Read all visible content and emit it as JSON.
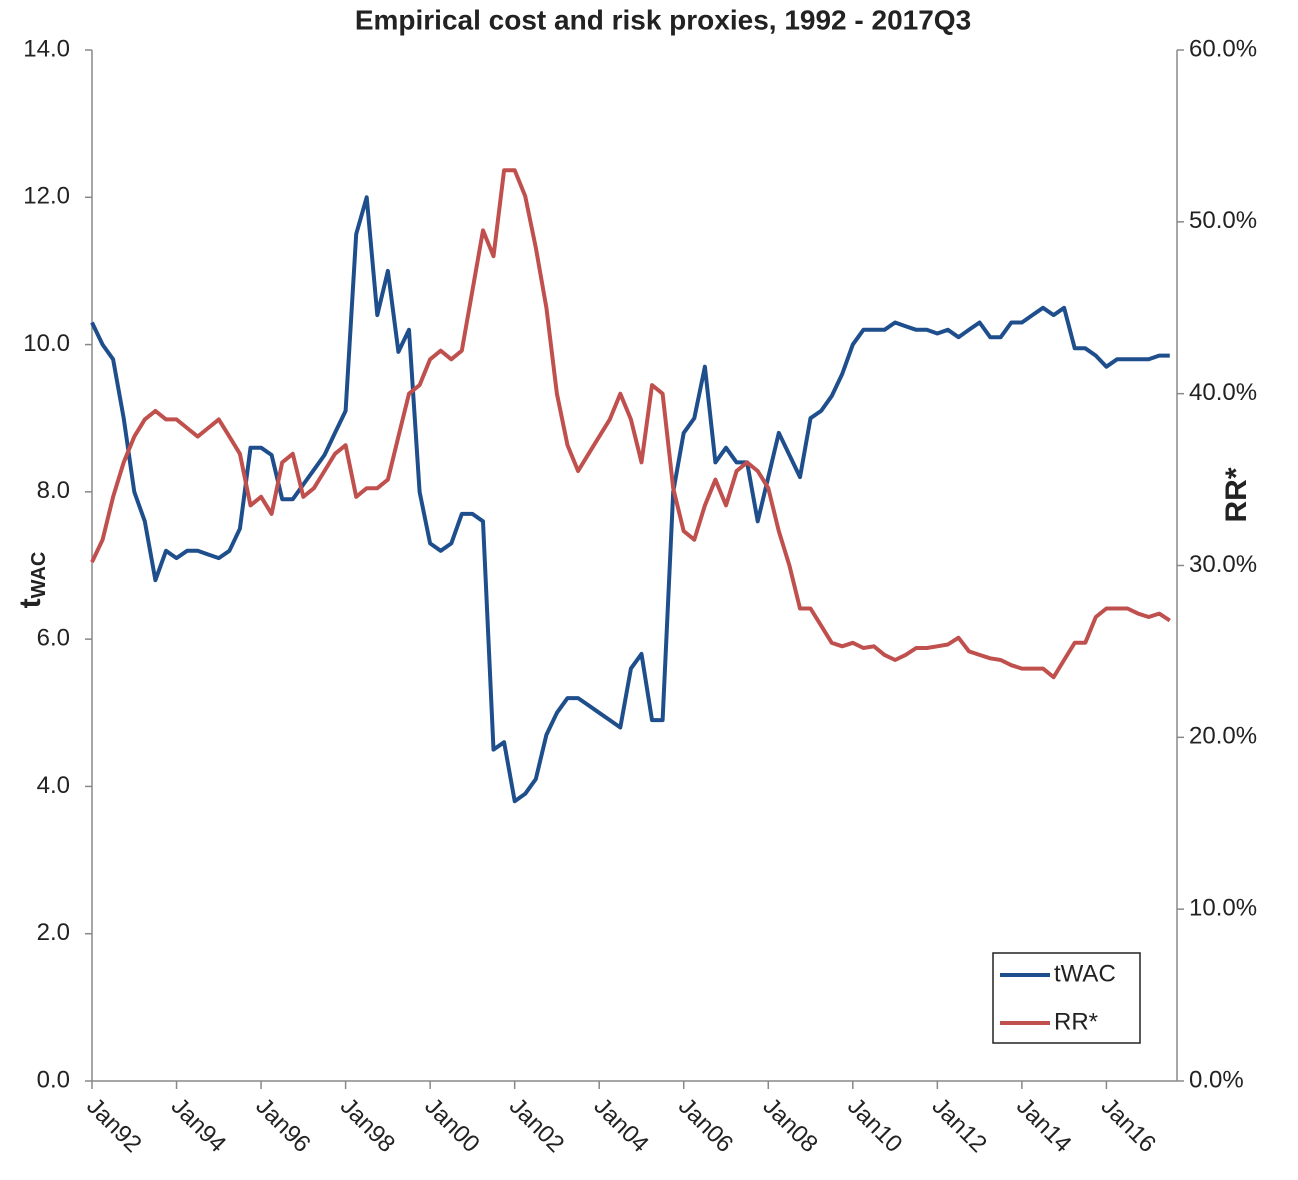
{
  "chart_data": {
    "type": "line",
    "title": "Empirical cost and risk proxies, 1992 - 2017Q3",
    "ylabel_main": "t",
    "ylabel_sub": "WAC",
    "y2label": "RR*",
    "x": [
      1992,
      1992.25,
      1992.5,
      1992.75,
      1993,
      1993.25,
      1993.5,
      1993.75,
      1994,
      1994.25,
      1994.5,
      1994.75,
      1995,
      1995.25,
      1995.5,
      1995.75,
      1996,
      1996.25,
      1996.5,
      1996.75,
      1997,
      1997.25,
      1997.5,
      1997.75,
      1998,
      1998.25,
      1998.5,
      1998.75,
      1999,
      1999.25,
      1999.5,
      1999.75,
      2000,
      2000.25,
      2000.5,
      2000.75,
      2001,
      2001.25,
      2001.5,
      2001.75,
      2002,
      2002.25,
      2002.5,
      2002.75,
      2003,
      2003.25,
      2003.5,
      2003.75,
      2004,
      2004.25,
      2004.5,
      2004.75,
      2005,
      2005.25,
      2005.5,
      2005.75,
      2006,
      2006.25,
      2006.5,
      2006.75,
      2007,
      2007.25,
      2007.5,
      2007.75,
      2008,
      2008.25,
      2008.5,
      2008.75,
      2009,
      2009.25,
      2009.5,
      2009.75,
      2010,
      2010.25,
      2010.5,
      2010.75,
      2011,
      2011.25,
      2011.5,
      2011.75,
      2012,
      2012.25,
      2012.5,
      2012.75,
      2013,
      2013.25,
      2013.5,
      2013.75,
      2014,
      2014.25,
      2014.5,
      2014.75,
      2015,
      2015.25,
      2015.5,
      2015.75,
      2016,
      2016.25,
      2016.5,
      2016.75,
      2017,
      2017.25,
      2017.5
    ],
    "xlim": [
      1992,
      2017.67
    ],
    "xticks": [
      {
        "value": 1992,
        "label": "Jan92"
      },
      {
        "value": 1994,
        "label": "Jan94"
      },
      {
        "value": 1996,
        "label": "Jan96"
      },
      {
        "value": 1998,
        "label": "Jan98"
      },
      {
        "value": 2000,
        "label": "Jan00"
      },
      {
        "value": 2002,
        "label": "Jan02"
      },
      {
        "value": 2004,
        "label": "Jan04"
      },
      {
        "value": 2006,
        "label": "Jan06"
      },
      {
        "value": 2008,
        "label": "Jan08"
      },
      {
        "value": 2010,
        "label": "Jan10"
      },
      {
        "value": 2012,
        "label": "Jan12"
      },
      {
        "value": 2014,
        "label": "Jan14"
      },
      {
        "value": 2016,
        "label": "Jan16"
      }
    ],
    "ylim": [
      0,
      14
    ],
    "yticks": [
      {
        "value": 0,
        "label": "0.0"
      },
      {
        "value": 2,
        "label": "2.0"
      },
      {
        "value": 4,
        "label": "4.0"
      },
      {
        "value": 6,
        "label": "6.0"
      },
      {
        "value": 8,
        "label": "8.0"
      },
      {
        "value": 10,
        "label": "10.0"
      },
      {
        "value": 12,
        "label": "12.0"
      },
      {
        "value": 14,
        "label": "14.0"
      }
    ],
    "y2lim": [
      0,
      60
    ],
    "y2ticks": [
      {
        "value": 0,
        "label": "0.0%"
      },
      {
        "value": 10,
        "label": "10.0%"
      },
      {
        "value": 20,
        "label": "20.0%"
      },
      {
        "value": 30,
        "label": "30.0%"
      },
      {
        "value": 40,
        "label": "40.0%"
      },
      {
        "value": 50,
        "label": "50.0%"
      },
      {
        "value": 60,
        "label": "60.0%"
      }
    ],
    "legend": "lower right",
    "series": [
      {
        "name": "tWAC",
        "color": "#1f4e8c",
        "values": [
          10.3,
          10.0,
          9.8,
          9.0,
          8.0,
          7.6,
          6.8,
          7.2,
          7.1,
          7.2,
          7.2,
          7.15,
          7.1,
          7.2,
          7.5,
          8.6,
          8.6,
          8.5,
          7.9,
          7.9,
          8.1,
          8.3,
          8.5,
          8.8,
          9.1,
          11.5,
          12.0,
          10.4,
          11.0,
          9.9,
          10.2,
          8.0,
          7.3,
          7.2,
          7.3,
          7.7,
          7.7,
          7.6,
          4.5,
          4.6,
          3.8,
          3.9,
          4.1,
          4.7,
          5.0,
          5.2,
          5.2,
          5.1,
          5.0,
          4.9,
          4.8,
          5.6,
          5.8,
          4.9,
          4.9,
          8.0,
          8.8,
          9.0,
          9.7,
          8.4,
          8.6,
          8.4,
          8.4,
          7.6,
          8.2,
          8.8,
          8.5,
          8.2,
          9.0,
          9.1,
          9.3,
          9.6,
          10.0,
          10.2,
          10.2,
          10.2,
          10.3,
          10.25,
          10.2,
          10.2,
          10.15,
          10.2,
          10.1,
          10.2,
          10.3,
          10.1,
          10.1,
          10.3,
          10.3,
          10.4,
          10.5,
          10.4,
          10.5,
          9.95,
          9.95,
          9.85,
          9.7,
          9.8,
          9.8,
          9.8,
          9.8,
          9.85,
          9.85
        ]
      },
      {
        "name": "RR*",
        "color": "#c0504d",
        "axis": "y2",
        "values": [
          30.2,
          31.5,
          34,
          36,
          37.5,
          38.5,
          39,
          38.5,
          38.5,
          38,
          37.5,
          38,
          38.5,
          37.5,
          36.5,
          33.5,
          34,
          33,
          36,
          36.5,
          34,
          34.5,
          35.5,
          36.5,
          37,
          34,
          34.5,
          34.5,
          35,
          37.5,
          40,
          40.5,
          42,
          42.5,
          42,
          42.5,
          46,
          49.5,
          48,
          53,
          53,
          51.5,
          48.5,
          45,
          40,
          37,
          35.5,
          36.5,
          37.5,
          38.5,
          40,
          38.5,
          36,
          40.5,
          40,
          34.5,
          32,
          31.5,
          33.5,
          35,
          33.5,
          35.5,
          36,
          35.5,
          34.5,
          32,
          30,
          27.5,
          27.5,
          26.5,
          25.5,
          25.3,
          25.5,
          25.2,
          25.3,
          24.8,
          24.5,
          24.8,
          25.2,
          25.2,
          25.3,
          25.4,
          25.8,
          25,
          24.8,
          24.6,
          24.5,
          24.2,
          24,
          24,
          24,
          23.5,
          24.5,
          25.5,
          25.5,
          27,
          27.5,
          27.5,
          27.5,
          27.2,
          27,
          27.2,
          26.8
        ]
      }
    ]
  }
}
